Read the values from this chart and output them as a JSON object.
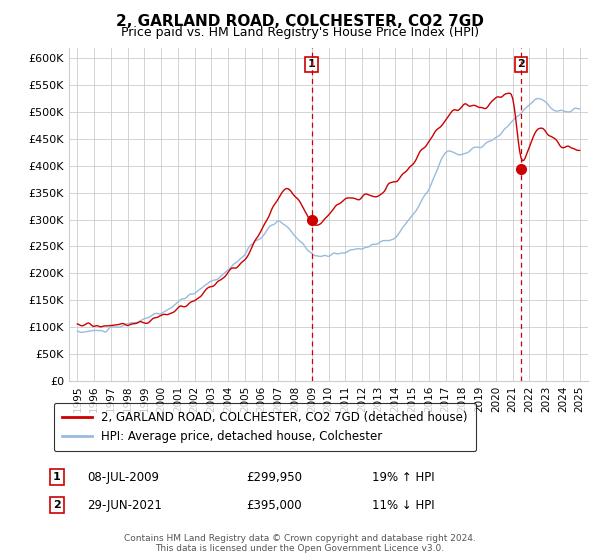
{
  "title": "2, GARLAND ROAD, COLCHESTER, CO2 7GD",
  "subtitle": "Price paid vs. HM Land Registry's House Price Index (HPI)",
  "ylabel_ticks": [
    "£0",
    "£50K",
    "£100K",
    "£150K",
    "£200K",
    "£250K",
    "£300K",
    "£350K",
    "£400K",
    "£450K",
    "£500K",
    "£550K",
    "£600K"
  ],
  "ytick_values": [
    0,
    50000,
    100000,
    150000,
    200000,
    250000,
    300000,
    350000,
    400000,
    450000,
    500000,
    550000,
    600000
  ],
  "legend_property_label": "2, GARLAND ROAD, COLCHESTER, CO2 7GD (detached house)",
  "legend_hpi_label": "HPI: Average price, detached house, Colchester",
  "property_color": "#cc0000",
  "hpi_color": "#99bbdd",
  "sale1_label": "1",
  "sale1_date": "08-JUL-2009",
  "sale1_price": "£299,950",
  "sale1_hpi": "19% ↑ HPI",
  "sale1_year": 2009.0,
  "sale1_value": 299950,
  "sale2_label": "2",
  "sale2_date": "29-JUN-2021",
  "sale2_price": "£395,000",
  "sale2_hpi": "11% ↓ HPI",
  "sale2_year": 2021.5,
  "sale2_value": 395000,
  "footer": "Contains HM Land Registry data © Crown copyright and database right 2024.\nThis data is licensed under the Open Government Licence v3.0.",
  "xlim": [
    1994.5,
    2025.5
  ],
  "ylim": [
    0,
    620000
  ],
  "background_color": "#ffffff",
  "grid_color": "#cccccc"
}
